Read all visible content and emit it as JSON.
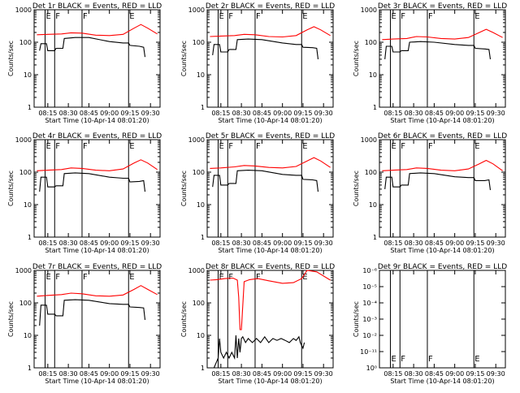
{
  "chart_data": [
    {
      "type": "line",
      "title": "Det 1r BLACK = Events, RED = LLD",
      "xlabel": "Start Time (10-Apr-14 08:01:20)",
      "ylabel": "Counts/sec",
      "x_ticks": [
        "08:15",
        "08:30",
        "08:45",
        "09:00",
        "09:15",
        "09:30"
      ],
      "y_ticks": [
        "1",
        "10",
        "100",
        "1000"
      ],
      "yscale": "log",
      "ylim": [
        1,
        1000
      ],
      "events": [
        [
          "E",
          "08:13"
        ],
        [
          "F",
          "08:20"
        ],
        [
          "F",
          "08:40"
        ],
        [
          "E",
          "09:14"
        ]
      ],
      "series": [
        {
          "color": "#ff0000",
          "x": [
            "08:07",
            "08:15",
            "08:25",
            "08:32",
            "08:40",
            "08:50",
            "09:00",
            "09:10",
            "09:18",
            "09:23",
            "09:28",
            "09:35"
          ],
          "y": [
            170,
            175,
            180,
            195,
            190,
            165,
            160,
            175,
            270,
            350,
            270,
            180
          ]
        },
        {
          "color": "#000000",
          "x": [
            "08:09",
            "08:10",
            "08:14",
            "08:15",
            "08:20",
            "08:21",
            "08:26",
            "08:27",
            "08:35",
            "08:45",
            "09:00",
            "09:10",
            "09:14",
            "09:15",
            "09:22",
            "09:25",
            "09:26"
          ],
          "y": [
            55,
            90,
            90,
            55,
            55,
            65,
            65,
            130,
            140,
            140,
            105,
            95,
            95,
            80,
            75,
            70,
            35
          ]
        }
      ]
    },
    {
      "type": "line",
      "title": "Det 2r BLACK = Events, RED = LLD",
      "xlabel": "Start Time (10-Apr-14 08:01:20)",
      "ylabel": "Counts/sec",
      "x_ticks": [
        "08:15",
        "08:30",
        "08:45",
        "09:00",
        "09:15",
        "09:30"
      ],
      "y_ticks": [
        "1",
        "10",
        "100",
        "1000"
      ],
      "yscale": "log",
      "ylim": [
        1,
        1000
      ],
      "events": [
        [
          "E",
          "08:13"
        ],
        [
          "F",
          "08:20"
        ],
        [
          "F",
          "08:40"
        ],
        [
          "E",
          "09:14"
        ]
      ],
      "series": [
        {
          "color": "#ff0000",
          "x": [
            "08:07",
            "08:15",
            "08:25",
            "08:32",
            "08:40",
            "08:50",
            "09:00",
            "09:10",
            "09:18",
            "09:23",
            "09:28",
            "09:35"
          ],
          "y": [
            150,
            155,
            160,
            175,
            170,
            150,
            145,
            160,
            240,
            300,
            240,
            160
          ]
        },
        {
          "color": "#000000",
          "x": [
            "08:09",
            "08:10",
            "08:14",
            "08:15",
            "08:20",
            "08:21",
            "08:26",
            "08:27",
            "08:35",
            "08:45",
            "09:00",
            "09:10",
            "09:14",
            "09:15",
            "09:22",
            "09:25",
            "09:26"
          ],
          "y": [
            40,
            85,
            85,
            50,
            50,
            60,
            60,
            120,
            125,
            120,
            95,
            85,
            85,
            70,
            68,
            65,
            30
          ]
        }
      ]
    },
    {
      "type": "line",
      "title": "Det 3r BLACK = Events, RED = LLD",
      "xlabel": "Start Time (10-Apr-14 08:01:20)",
      "ylabel": "Counts/sec",
      "x_ticks": [
        "08:15",
        "08:30",
        "08:45",
        "09:00",
        "09:15",
        "09:30"
      ],
      "y_ticks": [
        "1",
        "10",
        "100",
        "1000"
      ],
      "yscale": "log",
      "ylim": [
        1,
        1000
      ],
      "events": [
        [
          "E",
          "08:13"
        ],
        [
          "F",
          "08:20"
        ],
        [
          "F",
          "08:40"
        ],
        [
          "E",
          "09:14"
        ]
      ],
      "series": [
        {
          "color": "#ff0000",
          "x": [
            "08:07",
            "08:15",
            "08:25",
            "08:32",
            "08:40",
            "08:50",
            "09:00",
            "09:10",
            "09:18",
            "09:23",
            "09:28",
            "09:35"
          ],
          "y": [
            120,
            125,
            130,
            150,
            145,
            130,
            125,
            140,
            200,
            250,
            200,
            140
          ]
        },
        {
          "color": "#000000",
          "x": [
            "08:09",
            "08:10",
            "08:14",
            "08:15",
            "08:20",
            "08:21",
            "08:26",
            "08:27",
            "08:35",
            "08:45",
            "09:00",
            "09:10",
            "09:14",
            "09:15",
            "09:22",
            "09:25",
            "09:26"
          ],
          "y": [
            30,
            75,
            75,
            50,
            50,
            55,
            55,
            100,
            105,
            100,
            85,
            80,
            80,
            65,
            62,
            60,
            30
          ]
        }
      ]
    },
    {
      "type": "line",
      "title": "Det 4r BLACK = Events, RED = LLD",
      "xlabel": "Start Time (10-Apr-14 08:01:20)",
      "ylabel": "Counts/sec",
      "x_ticks": [
        "08:15",
        "08:30",
        "08:45",
        "09:00",
        "09:15",
        "09:30"
      ],
      "y_ticks": [
        "1",
        "10",
        "100",
        "1000"
      ],
      "yscale": "log",
      "ylim": [
        1,
        1000
      ],
      "events": [
        [
          "E",
          "08:13"
        ],
        [
          "F",
          "08:20"
        ],
        [
          "F",
          "08:40"
        ],
        [
          "E",
          "09:14"
        ]
      ],
      "series": [
        {
          "color": "#ff0000",
          "x": [
            "08:07",
            "08:15",
            "08:25",
            "08:32",
            "08:40",
            "08:50",
            "09:00",
            "09:10",
            "09:18",
            "09:23",
            "09:28",
            "09:35"
          ],
          "y": [
            110,
            115,
            120,
            135,
            130,
            115,
            110,
            125,
            190,
            240,
            190,
            120
          ]
        },
        {
          "color": "#000000",
          "x": [
            "08:09",
            "08:10",
            "08:14",
            "08:15",
            "08:20",
            "08:21",
            "08:26",
            "08:27",
            "08:35",
            "08:45",
            "09:00",
            "09:10",
            "09:14",
            "09:15",
            "09:22",
            "09:25",
            "09:26"
          ],
          "y": [
            25,
            70,
            70,
            35,
            35,
            38,
            38,
            90,
            95,
            90,
            70,
            65,
            65,
            50,
            52,
            55,
            25
          ]
        }
      ]
    },
    {
      "type": "line",
      "title": "Det 5r BLACK = Events, RED = LLD",
      "xlabel": "Start Time (10-Apr-14 08:01:20)",
      "ylabel": "Counts/sec",
      "x_ticks": [
        "08:15",
        "08:30",
        "08:45",
        "09:00",
        "09:15",
        "09:30"
      ],
      "y_ticks": [
        "1",
        "10",
        "100",
        "1000"
      ],
      "yscale": "log",
      "ylim": [
        1,
        1000
      ],
      "events": [
        [
          "E",
          "08:13"
        ],
        [
          "F",
          "08:20"
        ],
        [
          "F",
          "08:40"
        ],
        [
          "E",
          "09:14"
        ]
      ],
      "series": [
        {
          "color": "#ff0000",
          "x": [
            "08:07",
            "08:15",
            "08:25",
            "08:32",
            "08:40",
            "08:50",
            "09:00",
            "09:10",
            "09:18",
            "09:23",
            "09:28",
            "09:35"
          ],
          "y": [
            130,
            135,
            145,
            160,
            155,
            140,
            135,
            150,
            220,
            280,
            220,
            140
          ]
        },
        {
          "color": "#000000",
          "x": [
            "08:09",
            "08:10",
            "08:14",
            "08:15",
            "08:20",
            "08:21",
            "08:26",
            "08:27",
            "08:35",
            "08:45",
            "09:00",
            "09:10",
            "09:14",
            "09:15",
            "09:22",
            "09:25",
            "09:26"
          ],
          "y": [
            35,
            80,
            80,
            40,
            40,
            45,
            45,
            110,
            115,
            110,
            85,
            80,
            80,
            60,
            58,
            55,
            25
          ]
        }
      ]
    },
    {
      "type": "line",
      "title": "Det 6r BLACK = Events, RED = LLD",
      "xlabel": "Start Time (10-Apr-14 08:01:20)",
      "ylabel": "Counts/sec",
      "x_ticks": [
        "08:15",
        "08:30",
        "08:45",
        "09:00",
        "09:15",
        "09:30"
      ],
      "y_ticks": [
        "1",
        "10",
        "100",
        "1000"
      ],
      "yscale": "log",
      "ylim": [
        1,
        1000
      ],
      "events": [
        [
          "E",
          "08:13"
        ],
        [
          "F",
          "08:20"
        ],
        [
          "F",
          "08:40"
        ],
        [
          "E",
          "09:14"
        ]
      ],
      "series": [
        {
          "color": "#ff0000",
          "x": [
            "08:07",
            "08:15",
            "08:25",
            "08:32",
            "08:40",
            "08:50",
            "09:00",
            "09:10",
            "09:18",
            "09:23",
            "09:28",
            "09:35"
          ],
          "y": [
            110,
            115,
            120,
            135,
            130,
            115,
            110,
            125,
            180,
            230,
            180,
            110
          ]
        },
        {
          "color": "#000000",
          "x": [
            "08:09",
            "08:10",
            "08:14",
            "08:15",
            "08:20",
            "08:21",
            "08:26",
            "08:27",
            "08:35",
            "08:45",
            "09:00",
            "09:10",
            "09:14",
            "09:15",
            "09:22",
            "09:25",
            "09:26"
          ],
          "y": [
            30,
            70,
            70,
            35,
            35,
            40,
            40,
            90,
            95,
            90,
            72,
            68,
            68,
            55,
            55,
            58,
            28
          ]
        }
      ]
    },
    {
      "type": "line",
      "title": "Det 7r BLACK = Events, RED = LLD",
      "xlabel": "Start Time (10-Apr-14 08:01:20)",
      "ylabel": "Counts/sec",
      "x_ticks": [
        "08:15",
        "08:30",
        "08:45",
        "09:00",
        "09:15",
        "09:30"
      ],
      "y_ticks": [
        "1",
        "10",
        "100",
        "1000"
      ],
      "yscale": "log",
      "ylim": [
        1,
        1000
      ],
      "events": [
        [
          "E",
          "08:13"
        ],
        [
          "F",
          "08:20"
        ],
        [
          "F",
          "08:40"
        ],
        [
          "E",
          "09:14"
        ]
      ],
      "series": [
        {
          "color": "#ff0000",
          "x": [
            "08:07",
            "08:15",
            "08:25",
            "08:32",
            "08:40",
            "08:50",
            "09:00",
            "09:10",
            "09:18",
            "09:23",
            "09:28",
            "09:35"
          ],
          "y": [
            160,
            170,
            180,
            200,
            190,
            165,
            160,
            175,
            260,
            340,
            260,
            180
          ]
        },
        {
          "color": "#000000",
          "x": [
            "08:09",
            "08:10",
            "08:14",
            "08:15",
            "08:20",
            "08:21",
            "08:26",
            "08:27",
            "08:35",
            "08:45",
            "09:00",
            "09:10",
            "09:14",
            "09:15",
            "09:22",
            "09:25",
            "09:26"
          ],
          "y": [
            20,
            85,
            85,
            45,
            45,
            40,
            40,
            120,
            125,
            120,
            95,
            90,
            90,
            75,
            72,
            70,
            30
          ]
        }
      ]
    },
    {
      "type": "line",
      "title": "Det 8r BLACK = Events, RED = LLD",
      "xlabel": "Start Time (10-Apr-14 08:01:20)",
      "ylabel": "Counts/sec",
      "x_ticks": [
        "08:15",
        "08:30",
        "08:45",
        "09:00",
        "09:15",
        "09:30"
      ],
      "y_ticks": [
        "1",
        "10",
        "100",
        "1000"
      ],
      "yscale": "log",
      "ylim": [
        1,
        1000
      ],
      "events": [
        [
          "E",
          "08:13"
        ],
        [
          "F",
          "08:20"
        ],
        [
          "F",
          "08:40"
        ],
        [
          "E",
          "09:14"
        ]
      ],
      "series": [
        {
          "color": "#ff0000",
          "x": [
            "08:07",
            "08:12",
            "08:18",
            "08:24",
            "08:27",
            "08:28",
            "08:29",
            "08:30",
            "08:32",
            "08:36",
            "08:42",
            "08:50",
            "09:00",
            "09:08",
            "09:14",
            "09:18",
            "09:25",
            "09:35"
          ],
          "y": [
            500,
            520,
            560,
            580,
            500,
            150,
            15,
            15,
            450,
            520,
            560,
            480,
            400,
            420,
            560,
            1000,
            900,
            500
          ]
        },
        {
          "color": "#000000",
          "x": [
            "08:10",
            "08:13",
            "08:14",
            "08:15",
            "08:17",
            "08:19",
            "08:21",
            "08:23",
            "08:25",
            "08:26",
            "08:27",
            "08:28",
            "08:29",
            "08:30",
            "08:31",
            "08:33",
            "08:35",
            "08:38",
            "08:41",
            "08:44",
            "08:47",
            "08:50",
            "08:53",
            "08:56",
            "08:59",
            "09:02",
            "09:05",
            "09:08",
            "09:10",
            "09:12",
            "09:13",
            "09:15",
            "09:16"
          ],
          "y": [
            1,
            2,
            8,
            3,
            2,
            3,
            2,
            3,
            2,
            10,
            2,
            8,
            3,
            8,
            9,
            6,
            8,
            6,
            8,
            6,
            9,
            6,
            8,
            7,
            8,
            7,
            6,
            8,
            7,
            9,
            6,
            4,
            6
          ]
        }
      ]
    },
    {
      "type": "line",
      "title": "Det 9r BLACK = Events, RED = LLD",
      "xlabel": "Start Time (10-Apr-14 08:01:20)",
      "ylabel": "Counts/sec",
      "x_ticks": [
        "08:15",
        "08:30",
        "08:45",
        "09:00",
        "09:15",
        "09:30"
      ],
      "y_ticks": [
        "10⁰",
        "10⁻¹¹",
        "10⁻²",
        "10⁻³",
        "10⁻⁴",
        "10⁻⁵",
        "10⁻⁶"
      ],
      "yscale": "log",
      "events": [
        [
          "E",
          "08:13"
        ],
        [
          "F",
          "08:20"
        ],
        [
          "F",
          "08:40"
        ],
        [
          "E",
          "09:14"
        ]
      ],
      "series": []
    }
  ]
}
